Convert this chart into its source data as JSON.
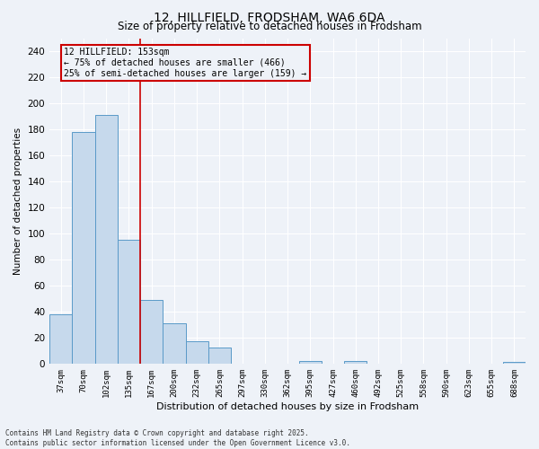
{
  "title1": "12, HILLFIELD, FRODSHAM, WA6 6DA",
  "title2": "Size of property relative to detached houses in Frodsham",
  "xlabel": "Distribution of detached houses by size in Frodsham",
  "ylabel": "Number of detached properties",
  "categories": [
    "37sqm",
    "70sqm",
    "102sqm",
    "135sqm",
    "167sqm",
    "200sqm",
    "232sqm",
    "265sqm",
    "297sqm",
    "330sqm",
    "362sqm",
    "395sqm",
    "427sqm",
    "460sqm",
    "492sqm",
    "525sqm",
    "558sqm",
    "590sqm",
    "623sqm",
    "655sqm",
    "688sqm"
  ],
  "values": [
    38,
    178,
    191,
    95,
    49,
    31,
    17,
    12,
    0,
    0,
    0,
    2,
    0,
    2,
    0,
    0,
    0,
    0,
    0,
    0,
    1
  ],
  "bar_color": "#c6d9ec",
  "bar_edge_color": "#5a9ac8",
  "vline_x": 3.5,
  "vline_color": "#cc0000",
  "annotation_line1": "12 HILLFIELD: 153sqm",
  "annotation_line2": "← 75% of detached houses are smaller (466)",
  "annotation_line3": "25% of semi-detached houses are larger (159) →",
  "ylim": [
    0,
    250
  ],
  "yticks": [
    0,
    20,
    40,
    60,
    80,
    100,
    120,
    140,
    160,
    180,
    200,
    220,
    240
  ],
  "footer": "Contains HM Land Registry data © Crown copyright and database right 2025.\nContains public sector information licensed under the Open Government Licence v3.0.",
  "bg_color": "#eef2f8",
  "grid_color": "#ffffff"
}
